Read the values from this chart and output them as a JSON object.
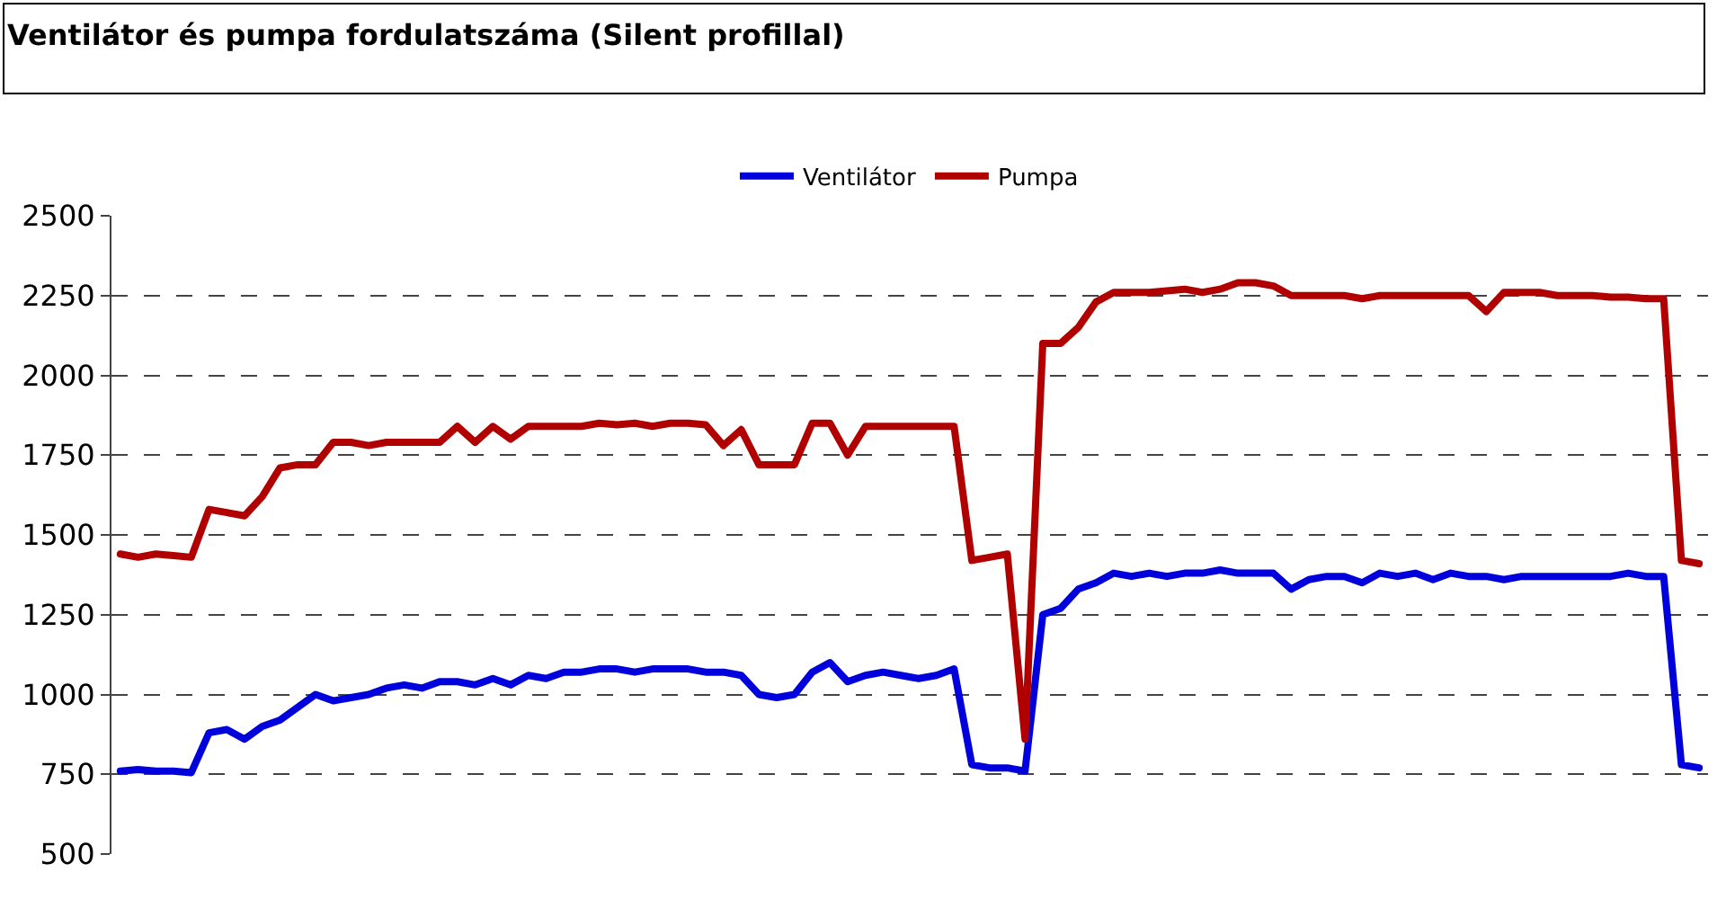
{
  "chart_data": {
    "type": "line",
    "title": "Ventilátor és pumpa fordulatszáma (Silent profillal)",
    "categories": [
      null,
      null,
      null,
      null,
      null,
      null,
      null,
      null,
      null,
      null,
      null,
      null,
      null,
      null,
      null,
      null,
      null,
      null,
      null,
      null,
      null,
      null,
      null,
      null,
      null,
      null,
      null,
      null,
      null,
      null,
      null,
      null,
      null,
      null,
      null,
      null,
      null,
      null,
      null,
      null,
      null,
      null,
      null,
      null,
      null,
      null,
      null,
      null,
      null,
      null,
      null,
      null,
      null,
      null,
      null,
      null,
      null,
      null,
      null,
      null,
      null,
      null,
      null,
      null,
      null,
      null,
      null,
      null,
      null,
      null,
      null,
      null,
      null,
      null,
      null,
      null,
      null,
      null,
      null,
      null,
      null,
      null,
      null,
      null,
      null,
      null,
      null,
      null,
      null,
      null
    ],
    "series": [
      {
        "name": "Ventilátor",
        "color": "#0000dd",
        "values": [
          760,
          765,
          760,
          760,
          755,
          880,
          890,
          860,
          900,
          920,
          960,
          1000,
          980,
          990,
          1000,
          1020,
          1030,
          1020,
          1040,
          1040,
          1030,
          1050,
          1030,
          1060,
          1050,
          1070,
          1070,
          1080,
          1080,
          1070,
          1080,
          1080,
          1080,
          1070,
          1070,
          1060,
          1000,
          990,
          1000,
          1070,
          1100,
          1040,
          1060,
          1070,
          1060,
          1050,
          1060,
          1080,
          780,
          770,
          770,
          760,
          1250,
          1270,
          1330,
          1350,
          1380,
          1370,
          1380,
          1370,
          1380,
          1380,
          1390,
          1380,
          1380,
          1380,
          1330,
          1360,
          1370,
          1370,
          1350,
          1380,
          1370,
          1380,
          1360,
          1380,
          1370,
          1370,
          1360,
          1370,
          1370,
          1370,
          1370,
          1370,
          1370,
          1380,
          1370,
          1370,
          780,
          770
        ]
      },
      {
        "name": "Pumpa",
        "color": "#b00000",
        "values": [
          1440,
          1430,
          1440,
          1435,
          1430,
          1580,
          1570,
          1560,
          1620,
          1710,
          1720,
          1720,
          1790,
          1790,
          1780,
          1790,
          1790,
          1790,
          1790,
          1840,
          1790,
          1840,
          1800,
          1840,
          1840,
          1840,
          1840,
          1850,
          1845,
          1850,
          1840,
          1850,
          1850,
          1845,
          1780,
          1830,
          1720,
          1720,
          1720,
          1850,
          1850,
          1750,
          1840,
          1840,
          1840,
          1840,
          1840,
          1840,
          1420,
          1430,
          1440,
          860,
          2100,
          2100,
          2150,
          2230,
          2260,
          2260,
          2260,
          2265,
          2270,
          2260,
          2270,
          2290,
          2290,
          2280,
          2250,
          2250,
          2250,
          2250,
          2240,
          2250,
          2250,
          2250,
          2250,
          2250,
          2250,
          2200,
          2260,
          2260,
          2260,
          2250,
          2250,
          2250,
          2245,
          2245,
          2240,
          2240,
          1420,
          1410
        ]
      }
    ],
    "ylim": [
      500,
      2500
    ],
    "yticks": [
      500,
      750,
      1000,
      1250,
      1500,
      1750,
      2000,
      2250,
      2500
    ],
    "grid": "y",
    "legend": "top",
    "marker": "none",
    "line_style": "solid",
    "tick_labels": "y"
  }
}
